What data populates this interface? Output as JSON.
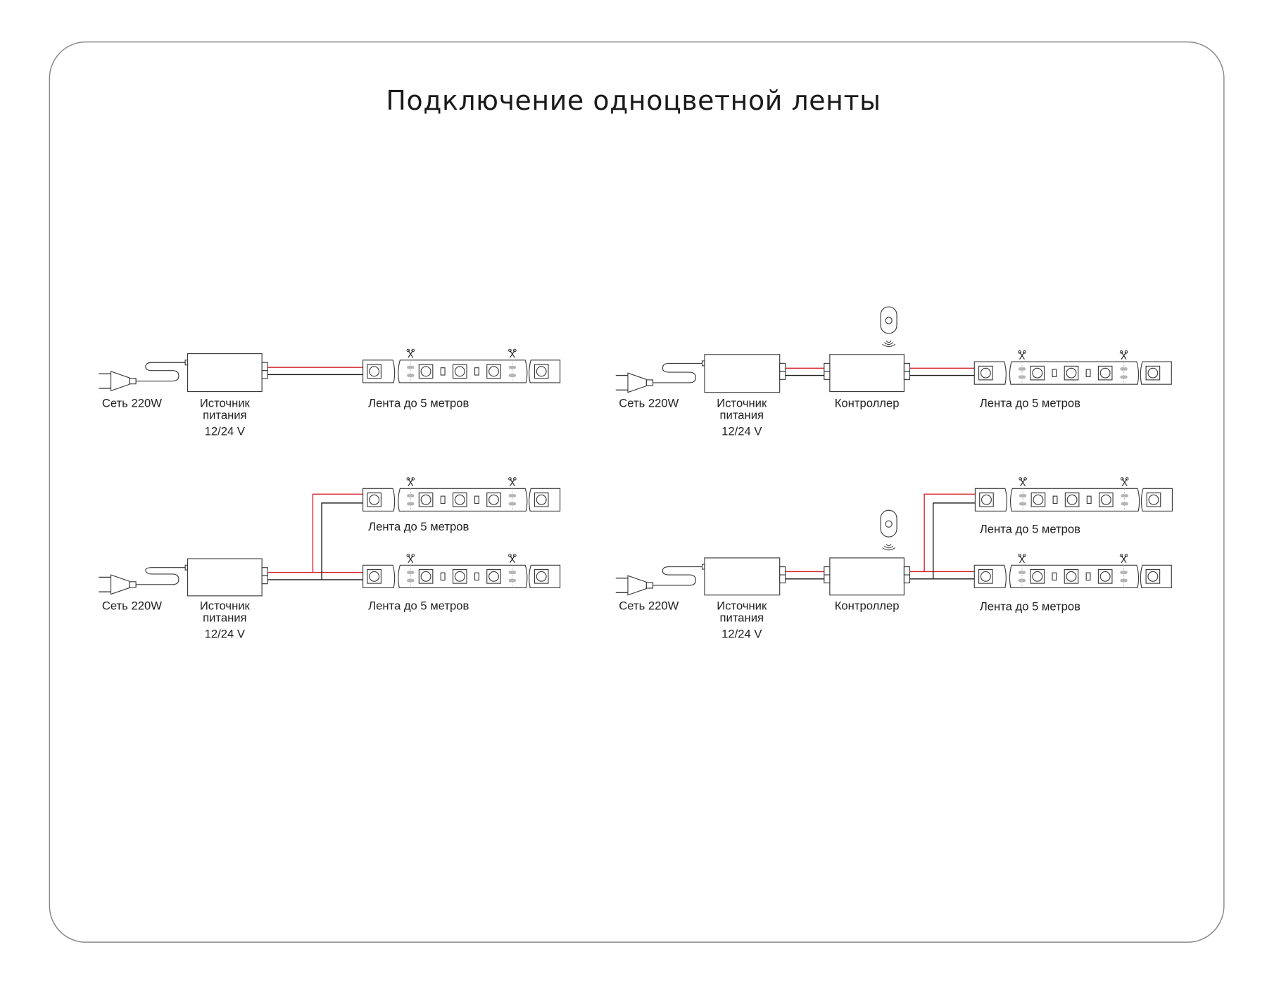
{
  "title": "Подключение одноцветной ленты",
  "colors": {
    "positive_wire": "#d4202a",
    "negative_wire": "#1a1a1a",
    "outline": "#3a3a3a",
    "cut_pad": "#b5b5b5",
    "border": "#8a8a8a"
  },
  "diagrams": [
    {
      "mains": "Сеть 220W",
      "psu": [
        "Источник",
        "питания"
      ],
      "voltage": "12/24 V",
      "strips": [
        "Лента до 5 метров"
      ]
    },
    {
      "mains": "Сеть 220W",
      "psu": [
        "Источник",
        "питания"
      ],
      "voltage": "12/24 V",
      "controller": "Контроллер",
      "strips": [
        "Лента до 5 метров"
      ]
    },
    {
      "mains": "Сеть 220W",
      "psu": [
        "Источник",
        "питания"
      ],
      "voltage": "12/24 V",
      "strips": [
        "Лента до 5 метров",
        "Лента до 5 метров"
      ]
    },
    {
      "mains": "Сеть 220W",
      "psu": [
        "Источник",
        "питания"
      ],
      "voltage": "12/24 V",
      "controller": "Контроллер",
      "strips": [
        "Лента до 5 метров",
        "Лента до 5 метров"
      ]
    }
  ]
}
